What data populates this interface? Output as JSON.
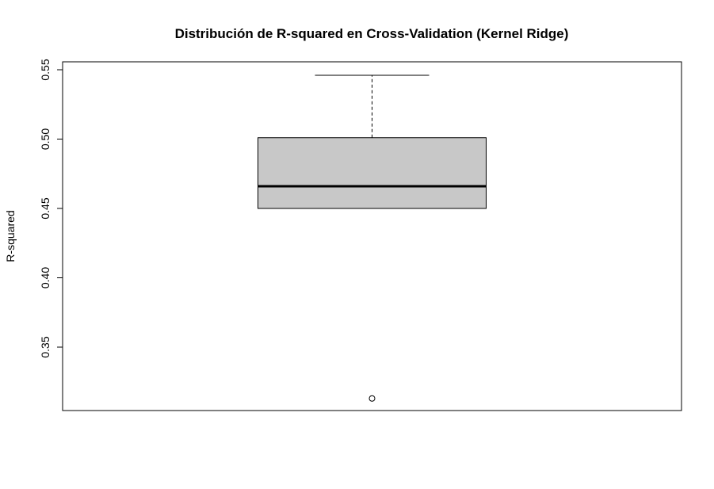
{
  "chart_data": {
    "type": "boxplot",
    "title": "Distribución de R-squared en Cross-Validation (Kernel Ridge)",
    "xlabel": "",
    "ylabel": "R-squared",
    "ylim": [
      0.305,
      0.555
    ],
    "yticks": [
      0.35,
      0.4,
      0.45,
      0.5,
      0.55
    ],
    "ytick_labels": [
      "0.35",
      "0.40",
      "0.45",
      "0.50",
      "0.55"
    ],
    "box": {
      "min": 0.45,
      "q1": 0.45,
      "median": 0.466,
      "q3": 0.501,
      "max": 0.546
    },
    "outliers": [
      0.313
    ],
    "box_fill": "#c8c8c8",
    "line_color": "#000000",
    "grid": false,
    "legend": "none"
  }
}
